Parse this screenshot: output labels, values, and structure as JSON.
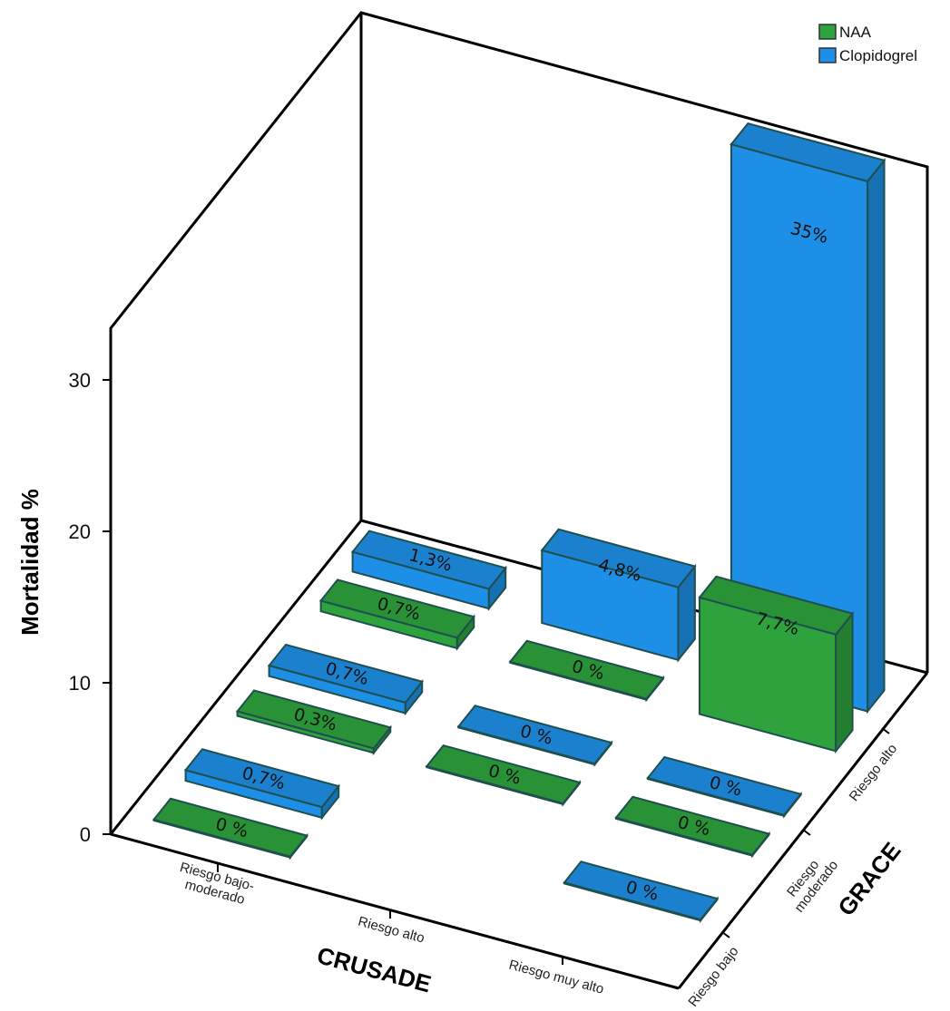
{
  "chart_data": {
    "type": "bar",
    "subtype": "3d-grouped",
    "title": "",
    "ylabel": "Mortalidad  %",
    "xlabel": "CRUSADE",
    "zlabel": "GRACE",
    "ylim": [
      0,
      30
    ],
    "yticks": [
      "0",
      "10",
      "20",
      "30"
    ],
    "x_categories": [
      "Riesgo bajo-\nmoderado",
      "Riesgo alto",
      "Riesgo muy alto"
    ],
    "z_categories": [
      "Riesgo bajo",
      "Riesgo\nmoderado",
      "Riesgo alto"
    ],
    "legend": {
      "position": "top-right"
    },
    "series": [
      {
        "name": "NAA",
        "color": "#2ea23c",
        "points": [
          {
            "x": "Riesgo bajo-\nmoderado",
            "z": "Riesgo bajo",
            "value": 0,
            "label": "0 %"
          },
          {
            "x": "Riesgo bajo-\nmoderado",
            "z": "Riesgo\nmoderado",
            "value": 0.3,
            "label": "0,3%"
          },
          {
            "x": "Riesgo bajo-\nmoderado",
            "z": "Riesgo alto",
            "value": 0.7,
            "label": "0,7%"
          },
          {
            "x": "Riesgo alto",
            "z": "Riesgo\nmoderado",
            "value": 0,
            "label": "0 %"
          },
          {
            "x": "Riesgo alto",
            "z": "Riesgo alto",
            "value": 0,
            "label": "0 %"
          },
          {
            "x": "Riesgo muy alto",
            "z": "Riesgo\nmoderado",
            "value": 0,
            "label": "0 %"
          },
          {
            "x": "Riesgo muy alto",
            "z": "Riesgo alto",
            "value": 7.7,
            "label": "7,7%"
          }
        ]
      },
      {
        "name": "Clopidogrel",
        "color": "#1e8fe6",
        "points": [
          {
            "x": "Riesgo bajo-\nmoderado",
            "z": "Riesgo bajo",
            "value": 0.7,
            "label": "0,7%"
          },
          {
            "x": "Riesgo bajo-\nmoderado",
            "z": "Riesgo\nmoderado",
            "value": 0.7,
            "label": "0,7%"
          },
          {
            "x": "Riesgo bajo-\nmoderado",
            "z": "Riesgo alto",
            "value": 1.3,
            "label": "1,3%"
          },
          {
            "x": "Riesgo alto",
            "z": "Riesgo\nmoderado",
            "value": 0,
            "label": "0 %"
          },
          {
            "x": "Riesgo alto",
            "z": "Riesgo alto",
            "value": 4.8,
            "label": "4,8%"
          },
          {
            "x": "Riesgo muy alto",
            "z": "Riesgo bajo",
            "value": 0,
            "label": "0 %"
          },
          {
            "x": "Riesgo muy alto",
            "z": "Riesgo\nmoderado",
            "value": 0,
            "label": "0 %"
          },
          {
            "x": "Riesgo muy alto",
            "z": "Riesgo alto",
            "value": 35,
            "label": "35%"
          }
        ]
      }
    ]
  }
}
